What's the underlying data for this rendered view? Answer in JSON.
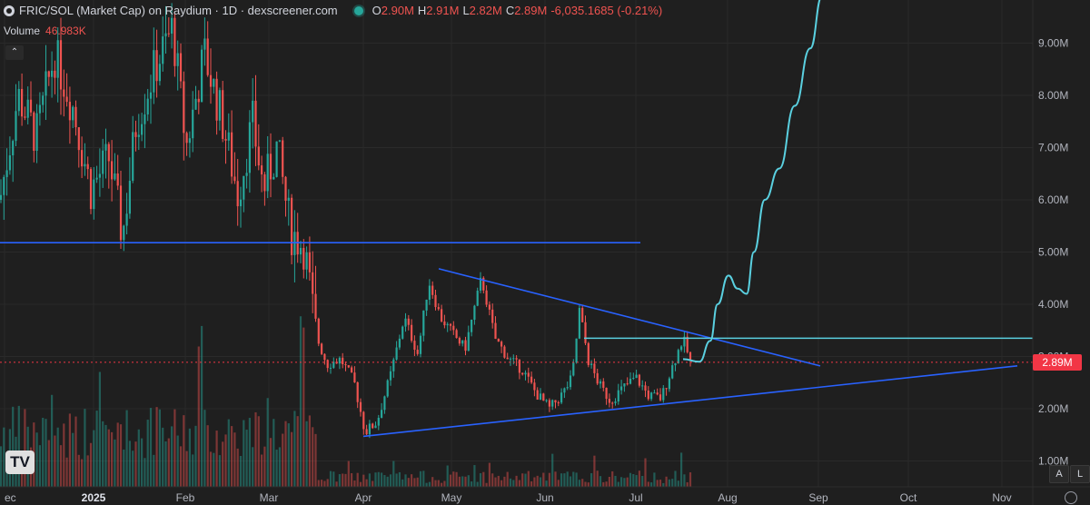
{
  "header": {
    "title": "FRIC/SOL (Market Cap) on Raydium · 1D · dexscreener.com",
    "ohlc": [
      {
        "k": "O",
        "v": "2.90M"
      },
      {
        "k": "H",
        "v": "2.91M"
      },
      {
        "k": "L",
        "v": "2.82M"
      },
      {
        "k": "C",
        "v": "2.89M"
      }
    ],
    "change": "-6,035.1685 (-0.21%)"
  },
  "volume": {
    "label": "Volume",
    "value": "46.983K"
  },
  "controls": {
    "logo": "TV",
    "auto_label": "A",
    "log_label": "L",
    "collapse_icon": "chevron-up-icon",
    "settings_icon": "gear-icon"
  },
  "colors": {
    "up": "#26a69a",
    "down": "#ef5350",
    "trendline": "#2962ff",
    "projection": "#5ad0e0",
    "last_price": "#f23645",
    "background": "#1f1f1f"
  },
  "chart_data": {
    "type": "candlestick",
    "last_price_label": "2.89M",
    "y_ticks": [
      "1.00M",
      "2.00M",
      "3.00M",
      "4.00M",
      "5.00M",
      "6.00M",
      "7.00M",
      "8.00M",
      "9.00M"
    ],
    "x_ticks": [
      "ec",
      "2025",
      "Feb",
      "Mar",
      "Apr",
      "May",
      "Jun",
      "Jul",
      "Aug",
      "Sep",
      "Oct",
      "Nov"
    ],
    "ylim": [
      0.9,
      9.6
    ],
    "grid": true,
    "price_path": [
      {
        "x": 0,
        "y": 6.0
      },
      {
        "x": 20,
        "y": 8.0
      },
      {
        "x": 40,
        "y": 7.2
      },
      {
        "x": 60,
        "y": 8.8
      },
      {
        "x": 80,
        "y": 7.8
      },
      {
        "x": 100,
        "y": 6.2
      },
      {
        "x": 120,
        "y": 6.8
      },
      {
        "x": 135,
        "y": 5.3
      },
      {
        "x": 150,
        "y": 7.5
      },
      {
        "x": 170,
        "y": 8.5
      },
      {
        "x": 190,
        "y": 9.3
      },
      {
        "x": 205,
        "y": 7.0
      },
      {
        "x": 225,
        "y": 8.8
      },
      {
        "x": 245,
        "y": 7.5
      },
      {
        "x": 262,
        "y": 6.1
      },
      {
        "x": 278,
        "y": 7.5
      },
      {
        "x": 290,
        "y": 6.2
      },
      {
        "x": 305,
        "y": 7.0
      },
      {
        "x": 320,
        "y": 5.4
      },
      {
        "x": 335,
        "y": 5.1
      },
      {
        "x": 348,
        "y": 3.4
      },
      {
        "x": 360,
        "y": 2.85
      },
      {
        "x": 375,
        "y": 2.95
      },
      {
        "x": 390,
        "y": 2.5
      },
      {
        "x": 402,
        "y": 1.55
      },
      {
        "x": 415,
        "y": 1.75
      },
      {
        "x": 430,
        "y": 2.65
      },
      {
        "x": 445,
        "y": 3.75
      },
      {
        "x": 460,
        "y": 3.05
      },
      {
        "x": 472,
        "y": 4.45
      },
      {
        "x": 485,
        "y": 3.75
      },
      {
        "x": 498,
        "y": 3.45
      },
      {
        "x": 512,
        "y": 3.15
      },
      {
        "x": 530,
        "y": 4.5
      },
      {
        "x": 545,
        "y": 3.35
      },
      {
        "x": 560,
        "y": 2.95
      },
      {
        "x": 575,
        "y": 2.75
      },
      {
        "x": 590,
        "y": 2.3
      },
      {
        "x": 605,
        "y": 2.0
      },
      {
        "x": 620,
        "y": 2.3
      },
      {
        "x": 630,
        "y": 2.6
      },
      {
        "x": 638,
        "y": 3.9
      },
      {
        "x": 648,
        "y": 2.9
      },
      {
        "x": 660,
        "y": 2.45
      },
      {
        "x": 672,
        "y": 2.15
      },
      {
        "x": 686,
        "y": 2.4
      },
      {
        "x": 700,
        "y": 2.6
      },
      {
        "x": 714,
        "y": 2.25
      },
      {
        "x": 728,
        "y": 2.2
      },
      {
        "x": 740,
        "y": 2.8
      },
      {
        "x": 752,
        "y": 3.35
      },
      {
        "x": 760,
        "y": 2.9
      }
    ],
    "trendlines": [
      {
        "name": "resistance-horizontal",
        "x1": 0,
        "y1": 5.18,
        "x2": 705,
        "y2": 5.18,
        "color": "#2962ff"
      },
      {
        "name": "descending-trendline",
        "x1": 483,
        "y1": 4.68,
        "x2": 903,
        "y2": 2.82,
        "color": "#2962ff"
      },
      {
        "name": "ascending-trendline",
        "x1": 400,
        "y1": 1.47,
        "x2": 1120,
        "y2": 2.82,
        "color": "#2962ff"
      },
      {
        "name": "breakout-level",
        "x1": 643,
        "y1": 3.35,
        "x2": 1137,
        "y2": 3.35,
        "color": "#5ad0e0"
      }
    ],
    "projection": [
      {
        "x": 752,
        "y": 2.95
      },
      {
        "x": 770,
        "y": 2.9
      },
      {
        "x": 782,
        "y": 3.3
      },
      {
        "x": 790,
        "y": 4.0
      },
      {
        "x": 802,
        "y": 4.55
      },
      {
        "x": 812,
        "y": 4.3
      },
      {
        "x": 822,
        "y": 4.2
      },
      {
        "x": 830,
        "y": 5.0
      },
      {
        "x": 842,
        "y": 6.0
      },
      {
        "x": 858,
        "y": 6.6
      },
      {
        "x": 875,
        "y": 7.8
      },
      {
        "x": 892,
        "y": 8.9
      },
      {
        "x": 905,
        "y": 9.9
      }
    ]
  }
}
